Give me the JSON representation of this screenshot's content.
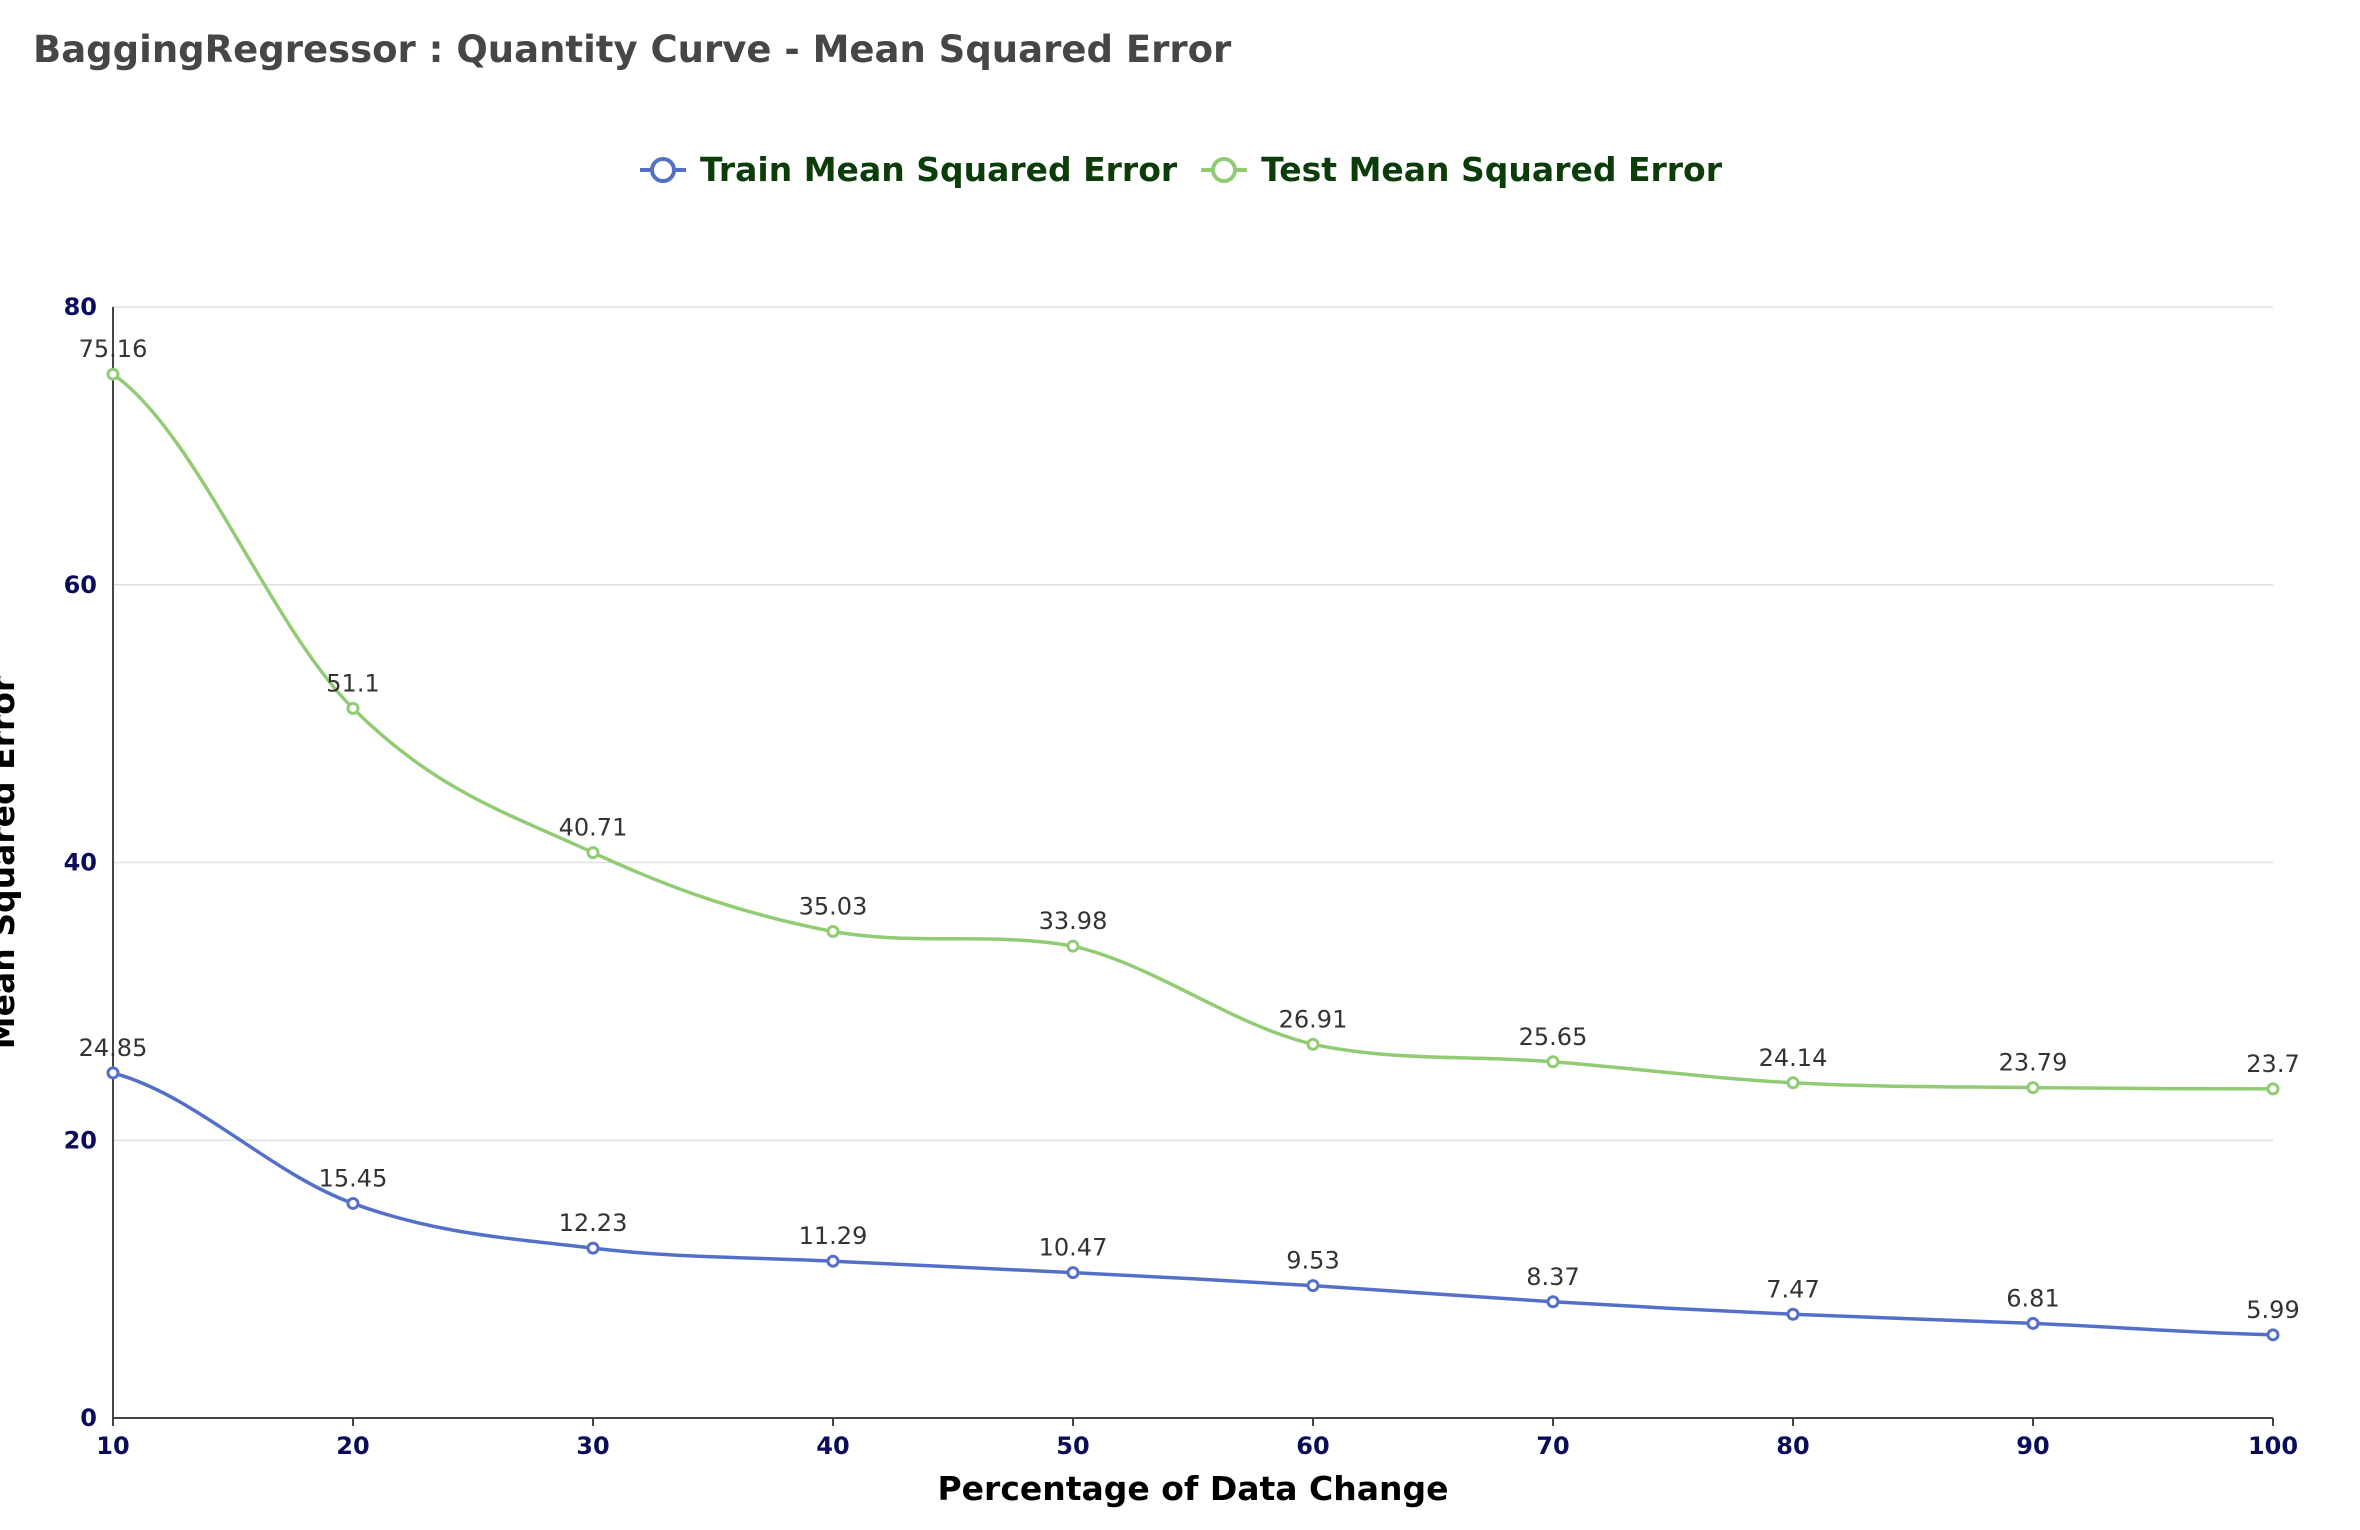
{
  "chart_data": {
    "type": "line",
    "title": "BaggingRegressor : Quantity Curve - Mean Squared Error",
    "xlabel": "Percentage of Data Change",
    "ylabel": "Mean Squared Error",
    "x": [
      10,
      20,
      30,
      40,
      50,
      60,
      70,
      80,
      90,
      100
    ],
    "xlim": [
      10,
      100
    ],
    "ylim": [
      0,
      80
    ],
    "yticks": [
      0,
      20,
      40,
      60,
      80
    ],
    "grid": true,
    "legend_position": "top-center",
    "series": [
      {
        "name": "Train Mean Squared Error",
        "color": "#5470c6",
        "values": [
          24.85,
          15.45,
          12.23,
          11.29,
          10.47,
          9.53,
          8.37,
          7.47,
          6.81,
          5.99
        ]
      },
      {
        "name": "Test Mean Squared Error",
        "color": "#91cc75",
        "values": [
          75.16,
          51.1,
          40.71,
          35.03,
          33.98,
          26.91,
          25.65,
          24.14,
          23.79,
          23.7
        ]
      }
    ]
  }
}
